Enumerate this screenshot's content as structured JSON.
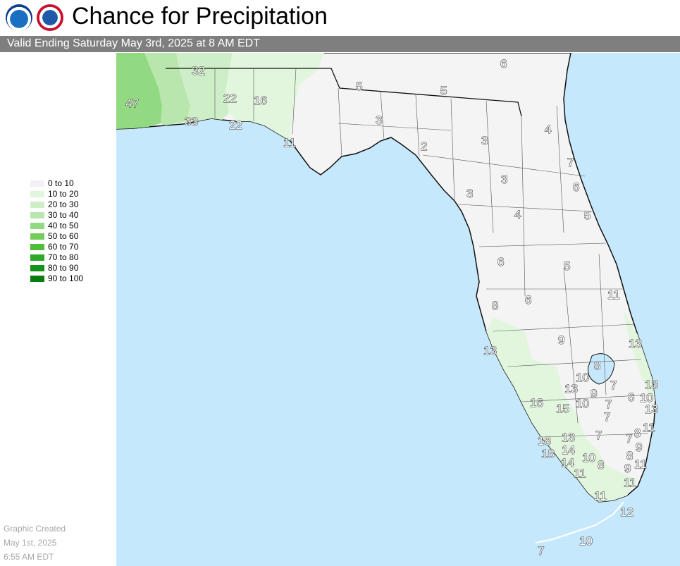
{
  "header": {
    "title": "Chance for Precipitation",
    "subtitle": "Valid Ending Saturday May 3rd, 2025 at 8 AM EDT"
  },
  "logos": [
    {
      "name": "noaa-logo"
    },
    {
      "name": "nws-logo"
    }
  ],
  "colors": {
    "ocean": "#c6e8fc",
    "land": "#f4f4f4",
    "boundary": "#444444",
    "header_bar": "#7f7f7f"
  },
  "legend": {
    "items": [
      {
        "label": "0 to 10",
        "color": "#f4f0f8"
      },
      {
        "label": "10 to 20",
        "color": "#e2f6de"
      },
      {
        "label": "20 to 30",
        "color": "#cdeec6"
      },
      {
        "label": "30 to 40",
        "color": "#b8e6ac"
      },
      {
        "label": "40 to 50",
        "color": "#92da82"
      },
      {
        "label": "50 to 60",
        "color": "#72cd5c"
      },
      {
        "label": "60 to 70",
        "color": "#4fbc3b"
      },
      {
        "label": "70 to 80",
        "color": "#2ea82a"
      },
      {
        "label": "80 to 90",
        "color": "#14931b"
      },
      {
        "label": "90 to 100",
        "color": "#077d0d"
      }
    ]
  },
  "credit": {
    "line1": "Graphic Created",
    "line2": "May 1st, 2025",
    "line3": "6:55 AM EDT"
  },
  "map_values": {
    "panhandle": [
      "47",
      "32",
      "33",
      "22",
      "22",
      "16",
      "11"
    ],
    "big_bend_north": [
      "5",
      "5",
      "6",
      "3",
      "2",
      "3",
      "4",
      "7",
      "6",
      "3",
      "3",
      "5",
      "4"
    ],
    "central": [
      "6",
      "5",
      "11",
      "8",
      "6",
      "9",
      "13",
      "13"
    ],
    "south": [
      "8",
      "10",
      "7",
      "13",
      "13",
      "9",
      "6",
      "10",
      "16",
      "15",
      "10",
      "7",
      "7",
      "13",
      "7",
      "8",
      "11",
      "18",
      "13",
      "7",
      "9",
      "18",
      "14",
      "10",
      "8",
      "14",
      "8",
      "11",
      "9",
      "11",
      "11",
      "11",
      "12",
      "10",
      "7"
    ]
  }
}
